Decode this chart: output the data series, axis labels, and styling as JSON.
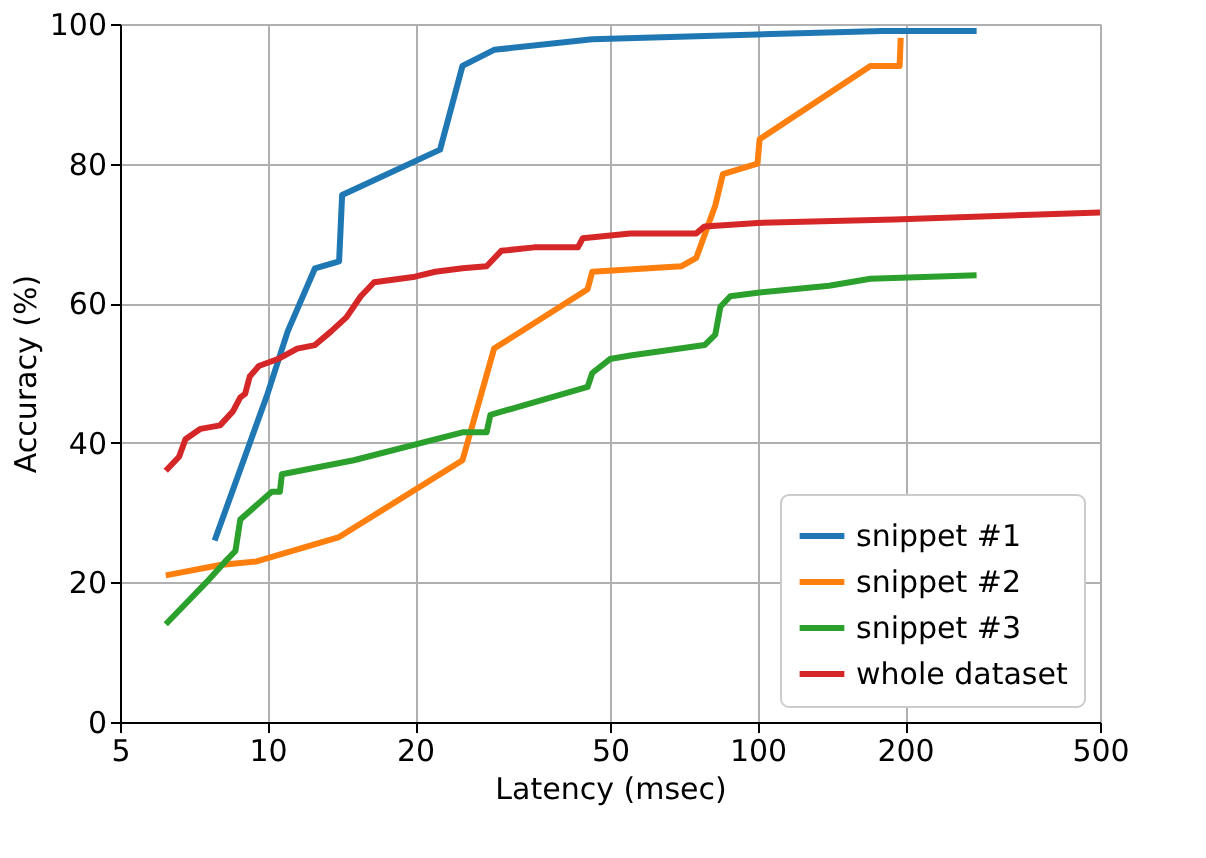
{
  "chart_data": {
    "type": "line",
    "xlabel": "Latency (msec)",
    "ylabel": "Accuracy (%)",
    "xlim": [
      5,
      500
    ],
    "xticks": [
      5,
      10,
      20,
      50,
      100,
      200,
      500
    ],
    "ylim": [
      0,
      100
    ],
    "yticks": [
      0,
      20,
      40,
      60,
      80,
      100
    ],
    "log": "x",
    "grid": true,
    "legend": "bottom right",
    "series": [
      {
        "name": "snippet #1",
        "color": "#1f77b4",
        "x": [
          7.8,
          10,
          11,
          12.5,
          14,
          14.2,
          22.5,
          25,
          29,
          46,
          100,
          180,
          280
        ],
        "values": [
          26,
          47,
          56,
          65,
          66,
          75.5,
          82,
          94,
          96.3,
          97.8,
          98.5,
          99,
          99
        ]
      },
      {
        "name": "snippet #2",
        "color": "#ff7f0e",
        "x": [
          6.2,
          8,
          9.5,
          14,
          25,
          29,
          45,
          46,
          70,
          75,
          82,
          85,
          100,
          101,
          170,
          195,
          196
        ],
        "values": [
          21,
          22.5,
          23,
          26.5,
          37.5,
          53.5,
          62,
          64.5,
          65.3,
          66.5,
          74,
          78.5,
          80,
          83.5,
          94,
          94,
          98
        ]
      },
      {
        "name": "snippet #3",
        "color": "#2ca02c",
        "x": [
          6.2,
          7.5,
          8.2,
          8.6,
          8.8,
          10.2,
          10.6,
          10.7,
          15,
          25,
          28,
          28.5,
          45,
          46,
          50,
          55,
          78,
          82,
          84,
          88,
          100,
          140,
          170,
          280
        ],
        "values": [
          14,
          20,
          23,
          24.5,
          29,
          33,
          33,
          35.5,
          37.5,
          41.5,
          41.5,
          44,
          48,
          50,
          52,
          52.5,
          54,
          55.5,
          59.5,
          61,
          61.5,
          62.5,
          63.5,
          64
        ]
      },
      {
        "name": "whole dataset",
        "color": "#d62728",
        "x": [
          6.2,
          6.6,
          6.8,
          7.3,
          8,
          8.5,
          8.8,
          9,
          9.2,
          9.6,
          10.5,
          11.5,
          12.5,
          13.5,
          14.5,
          15.5,
          16,
          16.5,
          20,
          22,
          25,
          28,
          30,
          35,
          43,
          44,
          55,
          75,
          78,
          100,
          190,
          500
        ],
        "values": [
          36,
          38,
          40.5,
          42,
          42.5,
          44.5,
          46.5,
          47,
          49.5,
          51,
          52,
          53.5,
          54,
          56,
          58,
          61,
          62,
          63,
          63.8,
          64.5,
          65,
          65.3,
          67.5,
          68,
          68,
          69.3,
          70,
          70,
          71,
          71.5,
          72,
          73
        ]
      }
    ]
  }
}
